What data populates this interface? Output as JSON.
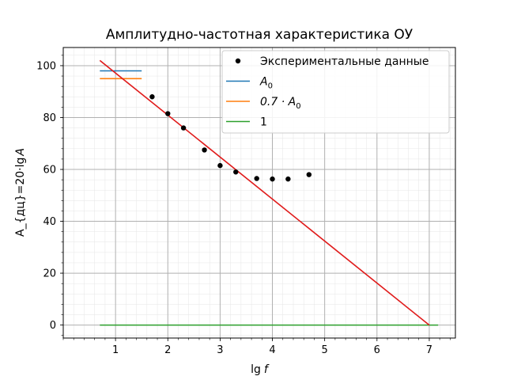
{
  "chart_data": {
    "type": "line",
    "title": "Амплитудно-частотная характеристика ОУ",
    "xlabel_main": "lg",
    "xlabel_var": "f",
    "ylabel_main": "A_{дц}=20·lg",
    "ylabel_var": "A",
    "xlim": [
      0.0,
      7.5
    ],
    "ylim": [
      -5,
      107
    ],
    "xticks": [
      1,
      2,
      3,
      4,
      5,
      6,
      7
    ],
    "yticks": [
      0,
      20,
      40,
      60,
      80,
      100
    ],
    "grid": true,
    "minor_grid": true,
    "legend_position": "top-right",
    "scatter": {
      "name": "Экспериментальные данные",
      "color": "#000000",
      "points": [
        {
          "x": 1.7,
          "y": 88
        },
        {
          "x": 2.0,
          "y": 81.5
        },
        {
          "x": 2.3,
          "y": 76
        },
        {
          "x": 2.7,
          "y": 67.5
        },
        {
          "x": 3.0,
          "y": 61.5
        },
        {
          "x": 3.3,
          "y": 59
        },
        {
          "x": 3.7,
          "y": 56.5
        },
        {
          "x": 4.0,
          "y": 56.3
        },
        {
          "x": 4.3,
          "y": 56.3
        },
        {
          "x": 4.7,
          "y": 58
        }
      ]
    },
    "lines": [
      {
        "name": "A_0",
        "color": "#1f77b4",
        "x": [
          0.7,
          1.5
        ],
        "y": [
          98,
          98
        ]
      },
      {
        "name": "0.7·A_0",
        "color": "#ff7f0e",
        "x": [
          0.7,
          1.5
        ],
        "y": [
          95,
          95
        ]
      },
      {
        "name": "1",
        "color": "#2ca02c",
        "x": [
          0.7,
          7.17
        ],
        "y": [
          0,
          0
        ]
      }
    ],
    "fit_line": {
      "color": "#e01b1b",
      "x": [
        0.7,
        7.0
      ],
      "y": [
        102,
        0
      ]
    },
    "legend": [
      {
        "label_main": "Экспериментальные данные",
        "label_sub": "",
        "marker": "dot",
        "color": "#000000"
      },
      {
        "label_main": "A",
        "label_sub": "0",
        "marker": "line",
        "color": "#1f77b4"
      },
      {
        "label_main": "0.7 · A",
        "label_sub": "0",
        "marker": "line",
        "color": "#ff7f0e"
      },
      {
        "label_main": "1",
        "label_sub": "",
        "marker": "line",
        "color": "#2ca02c"
      }
    ]
  }
}
